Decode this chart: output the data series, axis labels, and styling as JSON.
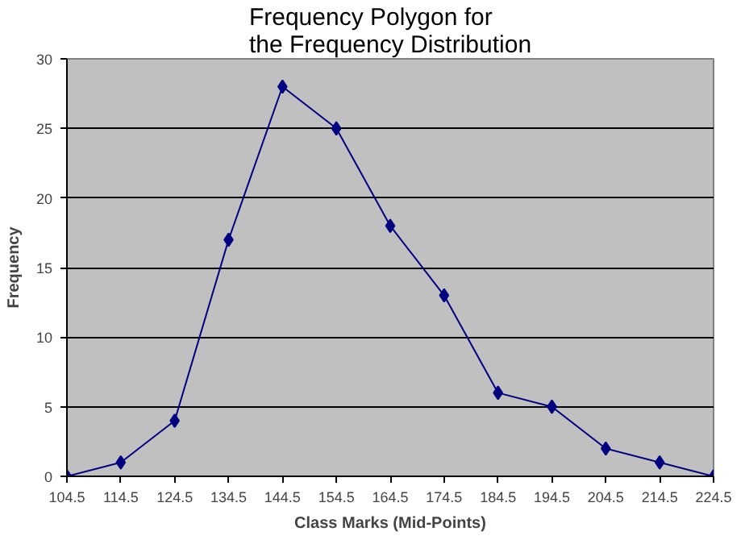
{
  "chart_data": {
    "type": "line",
    "title": "Frequency Polygon for the Frequency Distribution",
    "xlabel": "Class Marks (Mid-Points)",
    "ylabel": "Frequency",
    "x": [
      104.5,
      114.5,
      124.5,
      134.5,
      144.5,
      154.5,
      164.5,
      174.5,
      184.5,
      194.5,
      204.5,
      214.5,
      224.5
    ],
    "series": [
      {
        "color": "#000080",
        "values": [
          0,
          1,
          4,
          17,
          28,
          25,
          18,
          13,
          6,
          5,
          2,
          1,
          0
        ]
      }
    ],
    "xlim": [
      104.5,
      224.5
    ],
    "xticks": [
      104.5,
      114.5,
      124.5,
      134.5,
      144.5,
      154.5,
      164.5,
      174.5,
      184.5,
      194.5,
      204.5,
      214.5,
      224.5
    ],
    "ylim": [
      0,
      30
    ],
    "yticks": [
      0,
      5,
      10,
      15,
      20,
      25,
      30
    ],
    "grid": "y",
    "marker": "diamond",
    "line_style": "solid"
  }
}
